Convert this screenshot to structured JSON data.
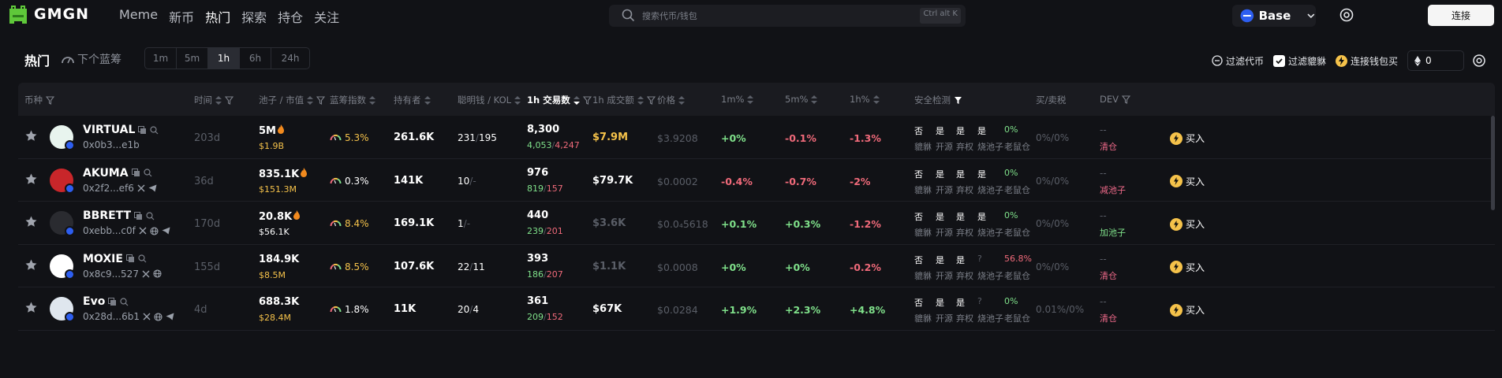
{
  "header": {
    "brand": "GMGN",
    "nav": [
      "Meme",
      "新币",
      "热门",
      "探索",
      "持仓",
      "关注"
    ],
    "active_nav": 2,
    "search_placeholder": "搜索代币/钱包",
    "search_shortcut": "Ctrl alt K",
    "chain": "Base",
    "connect": "连接"
  },
  "subbar": {
    "title": "热门",
    "next_blue": "下个蓝筹",
    "time_tabs": [
      "1m",
      "5m",
      "1h",
      "6h",
      "24h"
    ],
    "active_tab": 2,
    "filter_tokens": "过滤代币",
    "filter_honeypot": "过滤貔貅",
    "wallet_buy": "连接钱包买",
    "eth_amount": "0"
  },
  "columns": {
    "coin": "币种",
    "time": "时间",
    "pool": "池子 / 市值",
    "blue": "蓝筹指数",
    "holders": "持有者",
    "smart": "聪明钱 / KOL",
    "txs": "1h 交易数",
    "volume": "1h 成交额",
    "price": "价格",
    "m1": "1m%",
    "m5": "5m%",
    "h1": "1h%",
    "security": "安全检测",
    "tax": "买/卖税",
    "dev": "DEV"
  },
  "security_labels": [
    "貔貅",
    "开源",
    "弃权",
    "烧池子",
    "老鼠仓"
  ],
  "buy_label": "买入",
  "colors": {
    "accent_yellow": "#f5c24a",
    "up_green": "#7fe08a",
    "down_red": "#f06a7a",
    "bg": "#111216"
  },
  "rows": [
    {
      "name": "VIRTUAL",
      "addr": "0x0b3...e1b",
      "addr_icons": [],
      "avatar_color": "#e8f4ee",
      "avatar_icon": "virtual-logo",
      "age": "203d",
      "pool": "5M",
      "pool_fire": true,
      "mcap": "$1.9B",
      "mcap_color": "yellow",
      "blue": "5.3%",
      "blue_color": "yellow",
      "holders": "261.6K",
      "smart": "231",
      "kol": "195",
      "txs": "8,300",
      "buys": "4,053",
      "sells": "4,247",
      "volume": "$7.9M",
      "volume_color": "yellow",
      "price": "$3.9208",
      "price_dim": true,
      "m1": "+0%",
      "m1_color": "green",
      "m5": "-0.1%",
      "m5_color": "red",
      "h1": "-1.3%",
      "h1_color": "red",
      "sec": [
        "否",
        "是",
        "是",
        "是",
        "0%"
      ],
      "sec_colors": [
        "white",
        "white",
        "white",
        "white",
        "green"
      ],
      "tax": "0%/0%",
      "dev_top": "--",
      "dev_bot": "清仓",
      "dev_color": "pink"
    },
    {
      "name": "AKUMA",
      "addr": "0x2f2...ef6",
      "addr_icons": [
        "x",
        "telegram"
      ],
      "avatar_color": "#c8262a",
      "avatar_icon": "akuma-logo",
      "age": "36d",
      "pool": "835.1K",
      "pool_fire": true,
      "mcap": "$151.3M",
      "mcap_color": "yellow",
      "blue": "0.3%",
      "blue_color": "white",
      "holders": "141K",
      "smart": "10",
      "kol": "-",
      "txs": "976",
      "buys": "819",
      "sells": "157",
      "volume": "$79.7K",
      "volume_color": "white",
      "price": "$0.0002",
      "price_dim": true,
      "m1": "-0.4%",
      "m1_color": "red",
      "m5": "-0.7%",
      "m5_color": "red",
      "h1": "-2%",
      "h1_color": "red",
      "sec": [
        "否",
        "是",
        "是",
        "是",
        "0%"
      ],
      "sec_colors": [
        "white",
        "white",
        "white",
        "white",
        "green"
      ],
      "tax": "0%/0%",
      "dev_top": "--",
      "dev_bot": "减池子",
      "dev_color": "pink"
    },
    {
      "name": "BBRETT",
      "addr": "0xebb...c0f",
      "addr_icons": [
        "x",
        "web",
        "telegram"
      ],
      "avatar_color": "#2a2b30",
      "avatar_icon": "bbrett-logo",
      "age": "170d",
      "pool": "20.8K",
      "pool_fire": true,
      "mcap": "$56.1K",
      "mcap_color": "white",
      "blue": "8.4%",
      "blue_color": "yellow",
      "holders": "169.1K",
      "smart": "1",
      "kol": "-",
      "txs": "440",
      "buys": "239",
      "sells": "201",
      "volume": "$3.6K",
      "volume_color": "dim",
      "price": "$0.0₄5618",
      "price_dim": true,
      "m1": "+0.1%",
      "m1_color": "green",
      "m5": "+0.3%",
      "m5_color": "green",
      "h1": "-1.2%",
      "h1_color": "red",
      "sec": [
        "否",
        "是",
        "是",
        "是",
        "0%"
      ],
      "sec_colors": [
        "white",
        "white",
        "white",
        "white",
        "green"
      ],
      "tax": "0%/0%",
      "dev_top": "--",
      "dev_bot": "加池子",
      "dev_color": "green"
    },
    {
      "name": "MOXIE",
      "addr": "0x8c9...527",
      "addr_icons": [
        "x",
        "web"
      ],
      "avatar_color": "#ffffff",
      "avatar_icon": "moxie-logo",
      "age": "155d",
      "pool": "184.9K",
      "pool_fire": false,
      "mcap": "$8.5M",
      "mcap_color": "yellow",
      "blue": "8.5%",
      "blue_color": "yellow",
      "holders": "107.6K",
      "smart": "22",
      "kol": "11",
      "txs": "393",
      "buys": "186",
      "sells": "207",
      "volume": "$1.1K",
      "volume_color": "dim",
      "price": "$0.0008",
      "price_dim": true,
      "m1": "+0%",
      "m1_color": "green",
      "m5": "+0%",
      "m5_color": "green",
      "h1": "-0.2%",
      "h1_color": "red",
      "sec": [
        "否",
        "是",
        "是",
        "?",
        "56.8%"
      ],
      "sec_colors": [
        "white",
        "white",
        "white",
        "gray",
        "red"
      ],
      "tax": "0%/0%",
      "dev_top": "--",
      "dev_bot": "清仓",
      "dev_color": "pink"
    },
    {
      "name": "Evo",
      "addr": "0x28d...6b1",
      "addr_icons": [
        "x",
        "web",
        "telegram"
      ],
      "avatar_color": "#dfe6ee",
      "avatar_icon": "evo-logo",
      "age": "4d",
      "pool": "688.3K",
      "pool_fire": false,
      "mcap": "$28.4M",
      "mcap_color": "yellow",
      "blue": "1.8%",
      "blue_color": "white",
      "holders": "11K",
      "smart": "20",
      "kol": "4",
      "txs": "361",
      "buys": "209",
      "sells": "152",
      "volume": "$67K",
      "volume_color": "white",
      "price": "$0.0284",
      "price_dim": true,
      "m1": "+1.9%",
      "m1_color": "green",
      "m5": "+2.3%",
      "m5_color": "green",
      "h1": "+4.8%",
      "h1_color": "green",
      "sec": [
        "否",
        "是",
        "是",
        "?",
        "0%"
      ],
      "sec_colors": [
        "white",
        "white",
        "white",
        "gray",
        "green"
      ],
      "tax": "0.01%/0%",
      "dev_top": "--",
      "dev_bot": "清仓",
      "dev_color": "pink"
    }
  ]
}
